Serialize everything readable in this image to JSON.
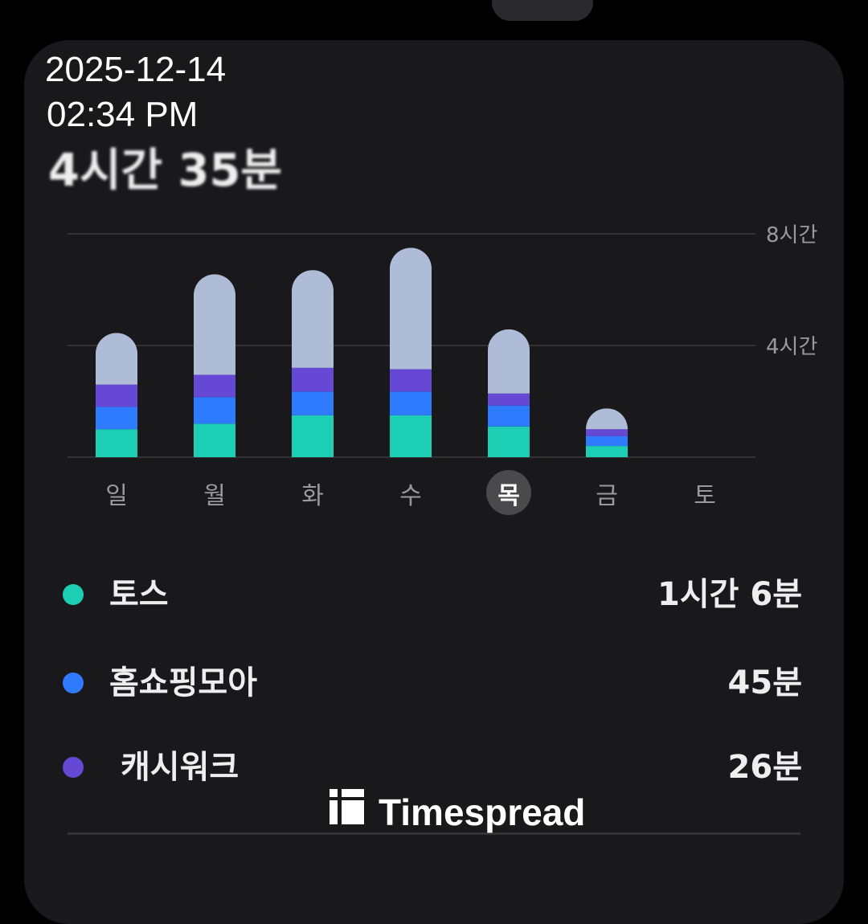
{
  "overlay": {
    "date": "2025-12-14",
    "time": "02:34 PM"
  },
  "header": {
    "total_time": "4시간 35분"
  },
  "chart_data": {
    "type": "bar",
    "stacked": true,
    "categories": [
      "일",
      "월",
      "화",
      "수",
      "목",
      "금",
      "토"
    ],
    "selected_category": "목",
    "y_ticks": [
      {
        "value": 4,
        "label": "4시간"
      },
      {
        "value": 8,
        "label": "8시간"
      }
    ],
    "ylim": [
      0,
      8
    ],
    "grid": true,
    "series": [
      {
        "name": "토스",
        "color": "#1ccfb4",
        "values": [
          1.0,
          1.2,
          1.5,
          1.5,
          1.1,
          0.4,
          0
        ]
      },
      {
        "name": "홈쇼핑모아",
        "color": "#2f7bff",
        "values": [
          0.8,
          0.95,
          0.85,
          0.85,
          0.75,
          0.35,
          0
        ]
      },
      {
        "name": "캐시워크",
        "color": "#6548d4",
        "values": [
          0.8,
          0.8,
          0.85,
          0.8,
          0.43,
          0.25,
          0
        ]
      },
      {
        "color": "#aebcd8",
        "values": [
          1.85,
          3.6,
          3.5,
          4.35,
          2.3,
          0.75,
          0
        ]
      }
    ]
  },
  "legend": [
    {
      "name": "토스",
      "value": "1시간 6분",
      "color": "#1ccfb4"
    },
    {
      "name": "홈쇼핑모아",
      "value": "45분",
      "color": "#2f7bff"
    },
    {
      "name": "캐시워크",
      "value": "26분",
      "color": "#6548d4"
    }
  ],
  "watermark": {
    "text": "Timespread"
  }
}
